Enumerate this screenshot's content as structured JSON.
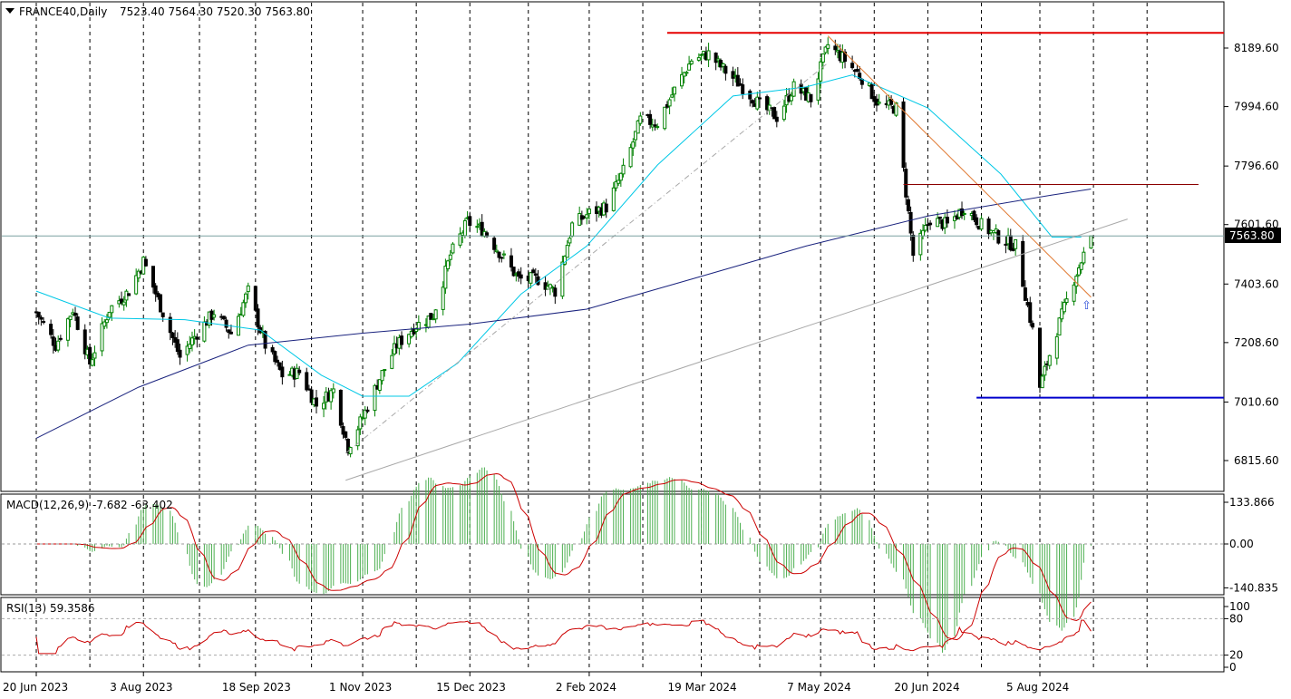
{
  "header": {
    "symbol_timeframe": "FRANCE40,Daily",
    "ohlc": "7523.40 7564.30 7520.30 7563.80"
  },
  "price_panel": {
    "yticks": [
      "8189.60",
      "7994.60",
      "7796.60",
      "7601.60",
      "7403.60",
      "7208.60",
      "7010.60",
      "6815.60"
    ],
    "current_price_label": "7563.80"
  },
  "macd_panel": {
    "label": "MACD(12,26,9) -7.682 -63.402",
    "yticks": [
      "133.866",
      "0.00",
      "-140.835"
    ]
  },
  "rsi_panel": {
    "label": "RSI(13) 59.3586",
    "yticks": [
      "100",
      "80",
      "20",
      "0"
    ]
  },
  "xaxis": {
    "ticks": [
      "20 Jun 2023",
      "3 Aug 2023",
      "18 Sep 2023",
      "1 Nov 2023",
      "15 Dec 2023",
      "2 Feb 2024",
      "19 Mar 2024",
      "7 May 2024",
      "20 Jun 2024",
      "5 Aug 2024"
    ]
  },
  "colors": {
    "up_candle": "#008000",
    "down_candle": "#000000",
    "ma_fast": "#00c8e6",
    "ma_slow": "#1a237e",
    "resistance_line": "#e60000",
    "support_line": "#0000cc",
    "mid_resistance": "#8b0000",
    "downtrend_line": "#e07830",
    "macd_hist": "#4caf50",
    "macd_signal": "#cc0000",
    "rsi_line": "#cc0000",
    "price_line": "#7aa0a0"
  },
  "chart_data": {
    "type": "candlestick",
    "instrument": "FRANCE40",
    "timeframe": "Daily",
    "last_bar": {
      "open": 7523.4,
      "high": 7564.3,
      "low": 7520.3,
      "close": 7563.8
    },
    "ylim": [
      6740,
      8260
    ],
    "close_path": [
      [
        "2023-06-20",
        7310
      ],
      [
        "2023-06-28",
        7200
      ],
      [
        "2023-07-05",
        7320
      ],
      [
        "2023-07-12",
        7140
      ],
      [
        "2023-07-20",
        7320
      ],
      [
        "2023-07-28",
        7380
      ],
      [
        "2023-08-03",
        7480
      ],
      [
        "2023-08-10",
        7330
      ],
      [
        "2023-08-18",
        7160
      ],
      [
        "2023-08-25",
        7240
      ],
      [
        "2023-09-01",
        7310
      ],
      [
        "2023-09-08",
        7240
      ],
      [
        "2023-09-15",
        7380
      ],
      [
        "2023-09-22",
        7200
      ],
      [
        "2023-09-29",
        7100
      ],
      [
        "2023-10-06",
        7110
      ],
      [
        "2023-10-13",
        7000
      ],
      [
        "2023-10-20",
        7050
      ],
      [
        "2023-10-26",
        6860
      ],
      [
        "2023-11-01",
        6960
      ],
      [
        "2023-11-08",
        7090
      ],
      [
        "2023-11-15",
        7200
      ],
      [
        "2023-11-22",
        7260
      ],
      [
        "2023-11-30",
        7300
      ],
      [
        "2023-12-07",
        7500
      ],
      [
        "2023-12-14",
        7610
      ],
      [
        "2023-12-21",
        7580
      ],
      [
        "2024-01-04",
        7420
      ],
      [
        "2024-01-12",
        7420
      ],
      [
        "2024-01-19",
        7380
      ],
      [
        "2024-01-26",
        7600
      ],
      [
        "2024-02-02",
        7640
      ],
      [
        "2024-02-09",
        7660
      ],
      [
        "2024-02-16",
        7780
      ],
      [
        "2024-02-23",
        7950
      ],
      [
        "2024-03-01",
        7940
      ],
      [
        "2024-03-08",
        8050
      ],
      [
        "2024-03-15",
        8150
      ],
      [
        "2024-03-22",
        8170
      ],
      [
        "2024-03-28",
        8120
      ],
      [
        "2024-04-05",
        8060
      ],
      [
        "2024-04-12",
        8000
      ],
      [
        "2024-04-19",
        7960
      ],
      [
        "2024-04-26",
        8060
      ],
      [
        "2024-05-03",
        8020
      ],
      [
        "2024-05-10",
        8200
      ],
      [
        "2024-05-17",
        8150
      ],
      [
        "2024-05-24",
        8090
      ],
      [
        "2024-05-31",
        8000
      ],
      [
        "2024-06-07",
        7990
      ],
      [
        "2024-06-14",
        7500
      ],
      [
        "2024-06-21",
        7620
      ],
      [
        "2024-06-28",
        7600
      ],
      [
        "2024-07-05",
        7660
      ],
      [
        "2024-07-12",
        7600
      ],
      [
        "2024-07-19",
        7560
      ],
      [
        "2024-07-26",
        7530
      ],
      [
        "2024-08-02",
        7250
      ],
      [
        "2024-08-05",
        7060
      ],
      [
        "2024-08-12",
        7250
      ],
      [
        "2024-08-19",
        7420
      ],
      [
        "2024-08-26",
        7563.8
      ]
    ],
    "horizontal_levels": [
      {
        "name": "resistance",
        "value": 8240
      },
      {
        "name": "mid_resistance",
        "value": 7735
      },
      {
        "name": "support",
        "value": 7025
      },
      {
        "name": "current",
        "value": 7563.8
      }
    ],
    "ma_fast_path": [
      [
        "2023-06-20",
        7380
      ],
      [
        "2023-07-20",
        7290
      ],
      [
        "2023-08-20",
        7285
      ],
      [
        "2023-09-20",
        7250
      ],
      [
        "2023-10-15",
        7100
      ],
      [
        "2023-11-01",
        7030
      ],
      [
        "2023-11-20",
        7030
      ],
      [
        "2023-12-10",
        7140
      ],
      [
        "2024-01-05",
        7370
      ],
      [
        "2024-02-01",
        7530
      ],
      [
        "2024-03-01",
        7800
      ],
      [
        "2024-04-01",
        8030
      ],
      [
        "2024-05-01",
        8060
      ],
      [
        "2024-05-20",
        8100
      ],
      [
        "2024-06-20",
        7990
      ],
      [
        "2024-07-20",
        7770
      ],
      [
        "2024-08-10",
        7560
      ],
      [
        "2024-08-22",
        7560
      ]
    ],
    "ma_slow_path": [
      [
        "2023-06-20",
        6890
      ],
      [
        "2023-08-01",
        7060
      ],
      [
        "2023-09-15",
        7200
      ],
      [
        "2023-11-01",
        7240
      ],
      [
        "2023-12-15",
        7270
      ],
      [
        "2024-02-01",
        7320
      ],
      [
        "2024-03-15",
        7420
      ],
      [
        "2024-05-01",
        7530
      ],
      [
        "2024-06-20",
        7630
      ],
      [
        "2024-08-10",
        7700
      ],
      [
        "2024-08-26",
        7720
      ]
    ],
    "trendlines": [
      {
        "name": "long_uptrend",
        "from": [
          "2023-10-25",
          6750
        ],
        "to": [
          "2024-09-10",
          7620
        ]
      },
      {
        "name": "dashed_uptrend",
        "from": [
          "2023-10-25",
          6840
        ],
        "to": [
          "2024-05-10",
          8140
        ]
      },
      {
        "name": "downtrend",
        "from": [
          "2024-05-10",
          8230
        ],
        "to": [
          "2024-08-26",
          7360
        ]
      }
    ],
    "macd": {
      "main": -7.682,
      "signal": -63.402,
      "ylim": [
        -160,
        160
      ]
    },
    "rsi": {
      "value": 59.3586,
      "ylim": [
        0,
        100
      ],
      "levels": [
        80,
        20
      ]
    }
  }
}
